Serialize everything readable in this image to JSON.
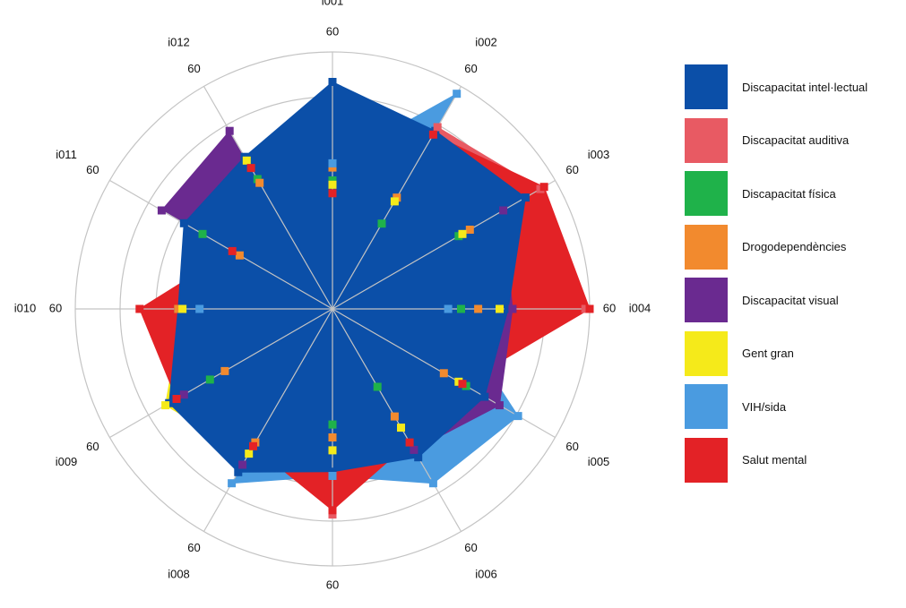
{
  "chart_data": {
    "type": "radar",
    "title": "",
    "axes": [
      "i001",
      "i002",
      "i003",
      "i004",
      "i005",
      "i006",
      "i007",
      "i008",
      "i009",
      "i010",
      "i011",
      "i012"
    ],
    "axis_max_label": "60",
    "grid": true,
    "legend_position": "right",
    "series": [
      {
        "name": "Discapacitat intel·lectual",
        "color": "#0b4fa8",
        "filled": true,
        "values": [
          53,
          48,
          52,
          41,
          41,
          40,
          38,
          44,
          44,
          36,
          40,
          41
        ]
      },
      {
        "name": "Discapacitat auditiva",
        "color": "#e85a63",
        "filled": true,
        "values": [
          0,
          49,
          56,
          59,
          0,
          0,
          48,
          0,
          0,
          0,
          0,
          0
        ]
      },
      {
        "name": "Discapacitat física",
        "color": "#1fb24a",
        "values": [
          30,
          23,
          34,
          30,
          36,
          21,
          27,
          37,
          33,
          35,
          35,
          35
        ]
      },
      {
        "name": "Drogodependències",
        "color": "#f28a2e",
        "values": [
          33,
          30,
          37,
          34,
          30,
          29,
          30,
          36,
          29,
          36,
          25,
          34
        ]
      },
      {
        "name": "Discapacitat visual",
        "color": "#6a2a90",
        "filled": true,
        "values": [
          0,
          0,
          46,
          42,
          45,
          38,
          0,
          42,
          40,
          0,
          46,
          48
        ]
      },
      {
        "name": "Gent gran",
        "color": "#f5ea1a",
        "filled": true,
        "values": [
          29,
          29,
          35,
          39,
          34,
          32,
          33,
          39,
          45,
          35,
          0,
          40
        ]
      },
      {
        "name": "VIH/sida",
        "color": "#4a9be0",
        "filled": true,
        "values": [
          34,
          58,
          0,
          27,
          50,
          47,
          39,
          47,
          0,
          31,
          0,
          0
        ]
      },
      {
        "name": "Salut mental",
        "color": "#e32226",
        "filled": true,
        "values": [
          27,
          47,
          57,
          60,
          35,
          36,
          47,
          37,
          42,
          45,
          27,
          38
        ]
      }
    ]
  }
}
